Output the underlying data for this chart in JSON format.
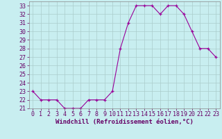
{
  "x": [
    0,
    1,
    2,
    3,
    4,
    5,
    6,
    7,
    8,
    9,
    10,
    11,
    12,
    13,
    14,
    15,
    16,
    17,
    18,
    19,
    20,
    21,
    22,
    23
  ],
  "y": [
    23,
    22,
    22,
    22,
    21,
    21,
    21,
    22,
    22,
    22,
    23,
    28,
    31,
    33,
    33,
    33,
    32,
    33,
    33,
    32,
    30,
    28,
    28,
    27
  ],
  "line_color": "#990099",
  "marker": "+",
  "marker_size": 3,
  "bg_color": "#c8eef0",
  "grid_color": "#aacccc",
  "xlabel": "Windchill (Refroidissement éolien,°C)",
  "xlabel_fontsize": 6.5,
  "tick_fontsize": 6.0,
  "ylim": [
    21,
    33.5
  ],
  "yticks": [
    21,
    22,
    23,
    24,
    25,
    26,
    27,
    28,
    29,
    30,
    31,
    32,
    33
  ],
  "xlim": [
    -0.5,
    23.5
  ],
  "xticks": [
    0,
    1,
    2,
    3,
    4,
    5,
    6,
    7,
    8,
    9,
    10,
    11,
    12,
    13,
    14,
    15,
    16,
    17,
    18,
    19,
    20,
    21,
    22,
    23
  ],
  "label_color": "#660066",
  "spine_color": "#888888"
}
